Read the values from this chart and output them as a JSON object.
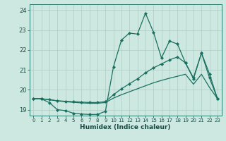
{
  "xlabel": "Humidex (Indice chaleur)",
  "background_color": "#cce8e0",
  "grid_color": "#aaccc4",
  "line_color": "#1a7060",
  "xlim": [
    -0.5,
    23.5
  ],
  "ylim": [
    18.7,
    24.3
  ],
  "x_ticks": [
    0,
    1,
    2,
    3,
    4,
    5,
    6,
    7,
    8,
    9,
    10,
    11,
    12,
    13,
    14,
    15,
    16,
    17,
    18,
    19,
    20,
    21,
    22,
    23
  ],
  "y_ticks": [
    19,
    20,
    21,
    22,
    23,
    24
  ],
  "series1_x": [
    0,
    1,
    2,
    3,
    4,
    5,
    6,
    7,
    8,
    9,
    10,
    11,
    12,
    13,
    14,
    15,
    16,
    17,
    18,
    19,
    20,
    21,
    22,
    23
  ],
  "series1_y": [
    19.55,
    19.55,
    19.35,
    19.0,
    18.95,
    18.82,
    18.78,
    18.76,
    18.76,
    18.92,
    21.15,
    22.5,
    22.85,
    22.8,
    23.85,
    22.9,
    21.6,
    22.45,
    22.3,
    21.35,
    20.55,
    21.85,
    20.8,
    19.55
  ],
  "series2_x": [
    0,
    1,
    2,
    3,
    4,
    5,
    6,
    7,
    8,
    9,
    10,
    11,
    12,
    13,
    14,
    15,
    16,
    17,
    18,
    19,
    20,
    21,
    22,
    23
  ],
  "series2_y": [
    19.55,
    19.55,
    19.5,
    19.45,
    19.42,
    19.4,
    19.38,
    19.36,
    19.36,
    19.4,
    19.75,
    20.05,
    20.3,
    20.55,
    20.85,
    21.1,
    21.3,
    21.5,
    21.65,
    21.35,
    20.6,
    21.85,
    20.6,
    19.55
  ],
  "series3_x": [
    0,
    1,
    2,
    3,
    4,
    5,
    6,
    7,
    8,
    9,
    10,
    11,
    12,
    13,
    14,
    15,
    16,
    17,
    18,
    19,
    20,
    21,
    22,
    23
  ],
  "series3_y": [
    19.55,
    19.55,
    19.5,
    19.44,
    19.4,
    19.37,
    19.34,
    19.32,
    19.32,
    19.36,
    19.58,
    19.75,
    19.9,
    20.05,
    20.2,
    20.35,
    20.47,
    20.58,
    20.68,
    20.78,
    20.28,
    20.78,
    20.12,
    19.55
  ]
}
